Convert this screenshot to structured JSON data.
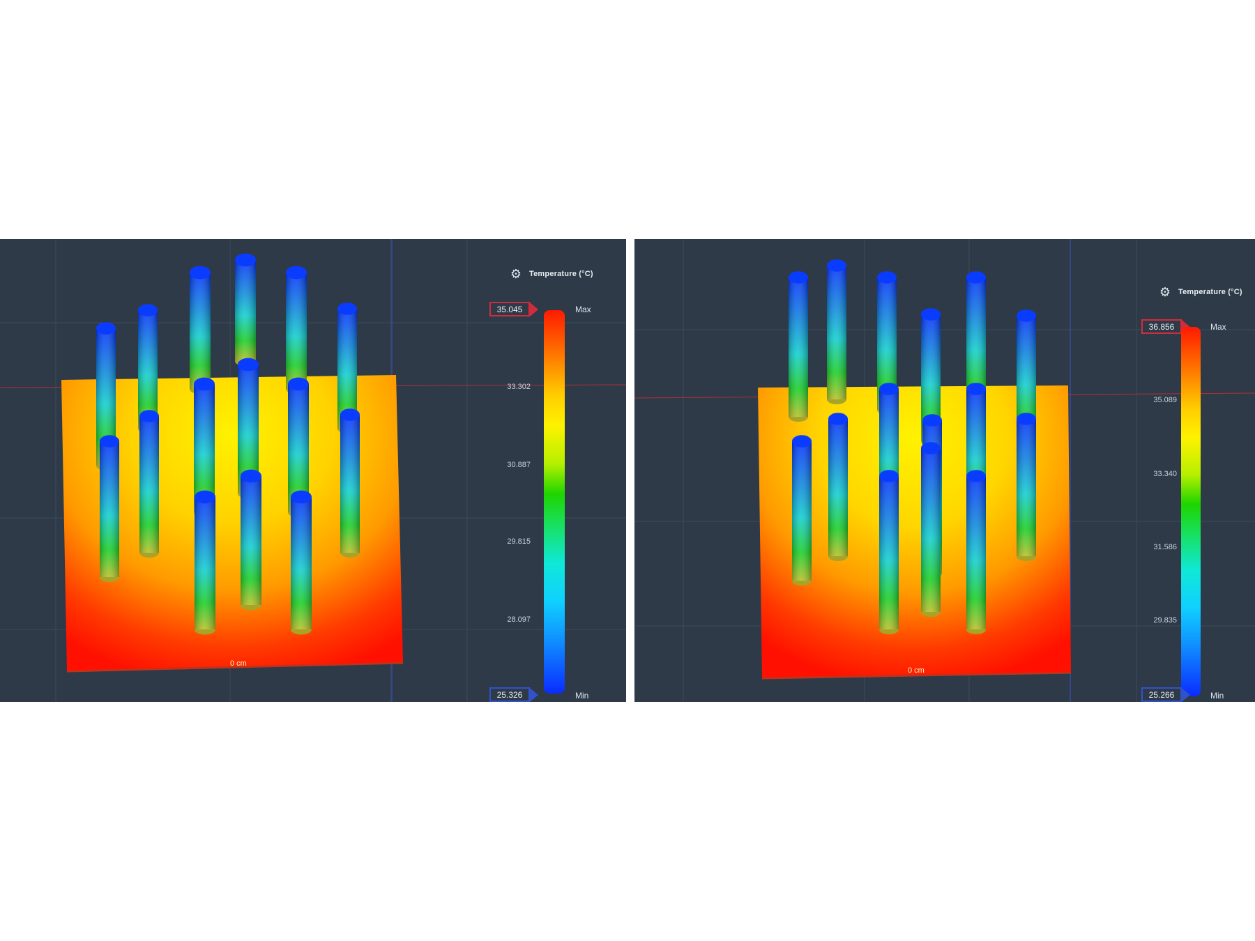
{
  "panels": [
    {
      "id": "left",
      "legend": {
        "title": "Temperature (°C)",
        "max_value": "35.045",
        "max_label": "Max",
        "min_value": "25.326",
        "min_label": "Min",
        "ticks": [
          "33.302",
          "30.887",
          "29.815",
          "28.097"
        ]
      },
      "scale_label": "0 cm",
      "colors": {
        "hot": "#ff1a00",
        "cold": "#0a2cff",
        "background": "#2e3a48"
      }
    },
    {
      "id": "right",
      "legend": {
        "title": "Temperature (°C)",
        "max_value": "36.856",
        "max_label": "Max",
        "min_value": "25.266",
        "min_label": "Min",
        "ticks": [
          "35.089",
          "33.340",
          "31.586",
          "29.835"
        ]
      },
      "scale_label": "0 cm",
      "colors": {
        "hot": "#ff1a00",
        "cold": "#0a2cff",
        "background": "#2e3a48"
      }
    }
  ]
}
